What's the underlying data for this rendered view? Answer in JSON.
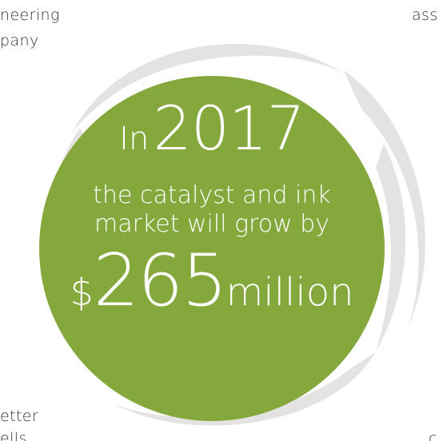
{
  "background_fragments": {
    "top_left_line1": "neering",
    "top_left_line2": "pany",
    "top_right": "ass",
    "bottom_left_line1": "etter",
    "bottom_left_line2": "ells",
    "bottom_right": "c"
  },
  "headline": {
    "prefix": "In",
    "year": "2017",
    "body_line1": "the catalyst and ink",
    "body_line2": "market will grow by",
    "currency": "$",
    "amount": "265",
    "unit": "million"
  },
  "colors": {
    "circle": "#84a83b",
    "swirl": "#e4e3e1",
    "circle_text": "#ffffff",
    "fragment_text": "#2f3233"
  }
}
